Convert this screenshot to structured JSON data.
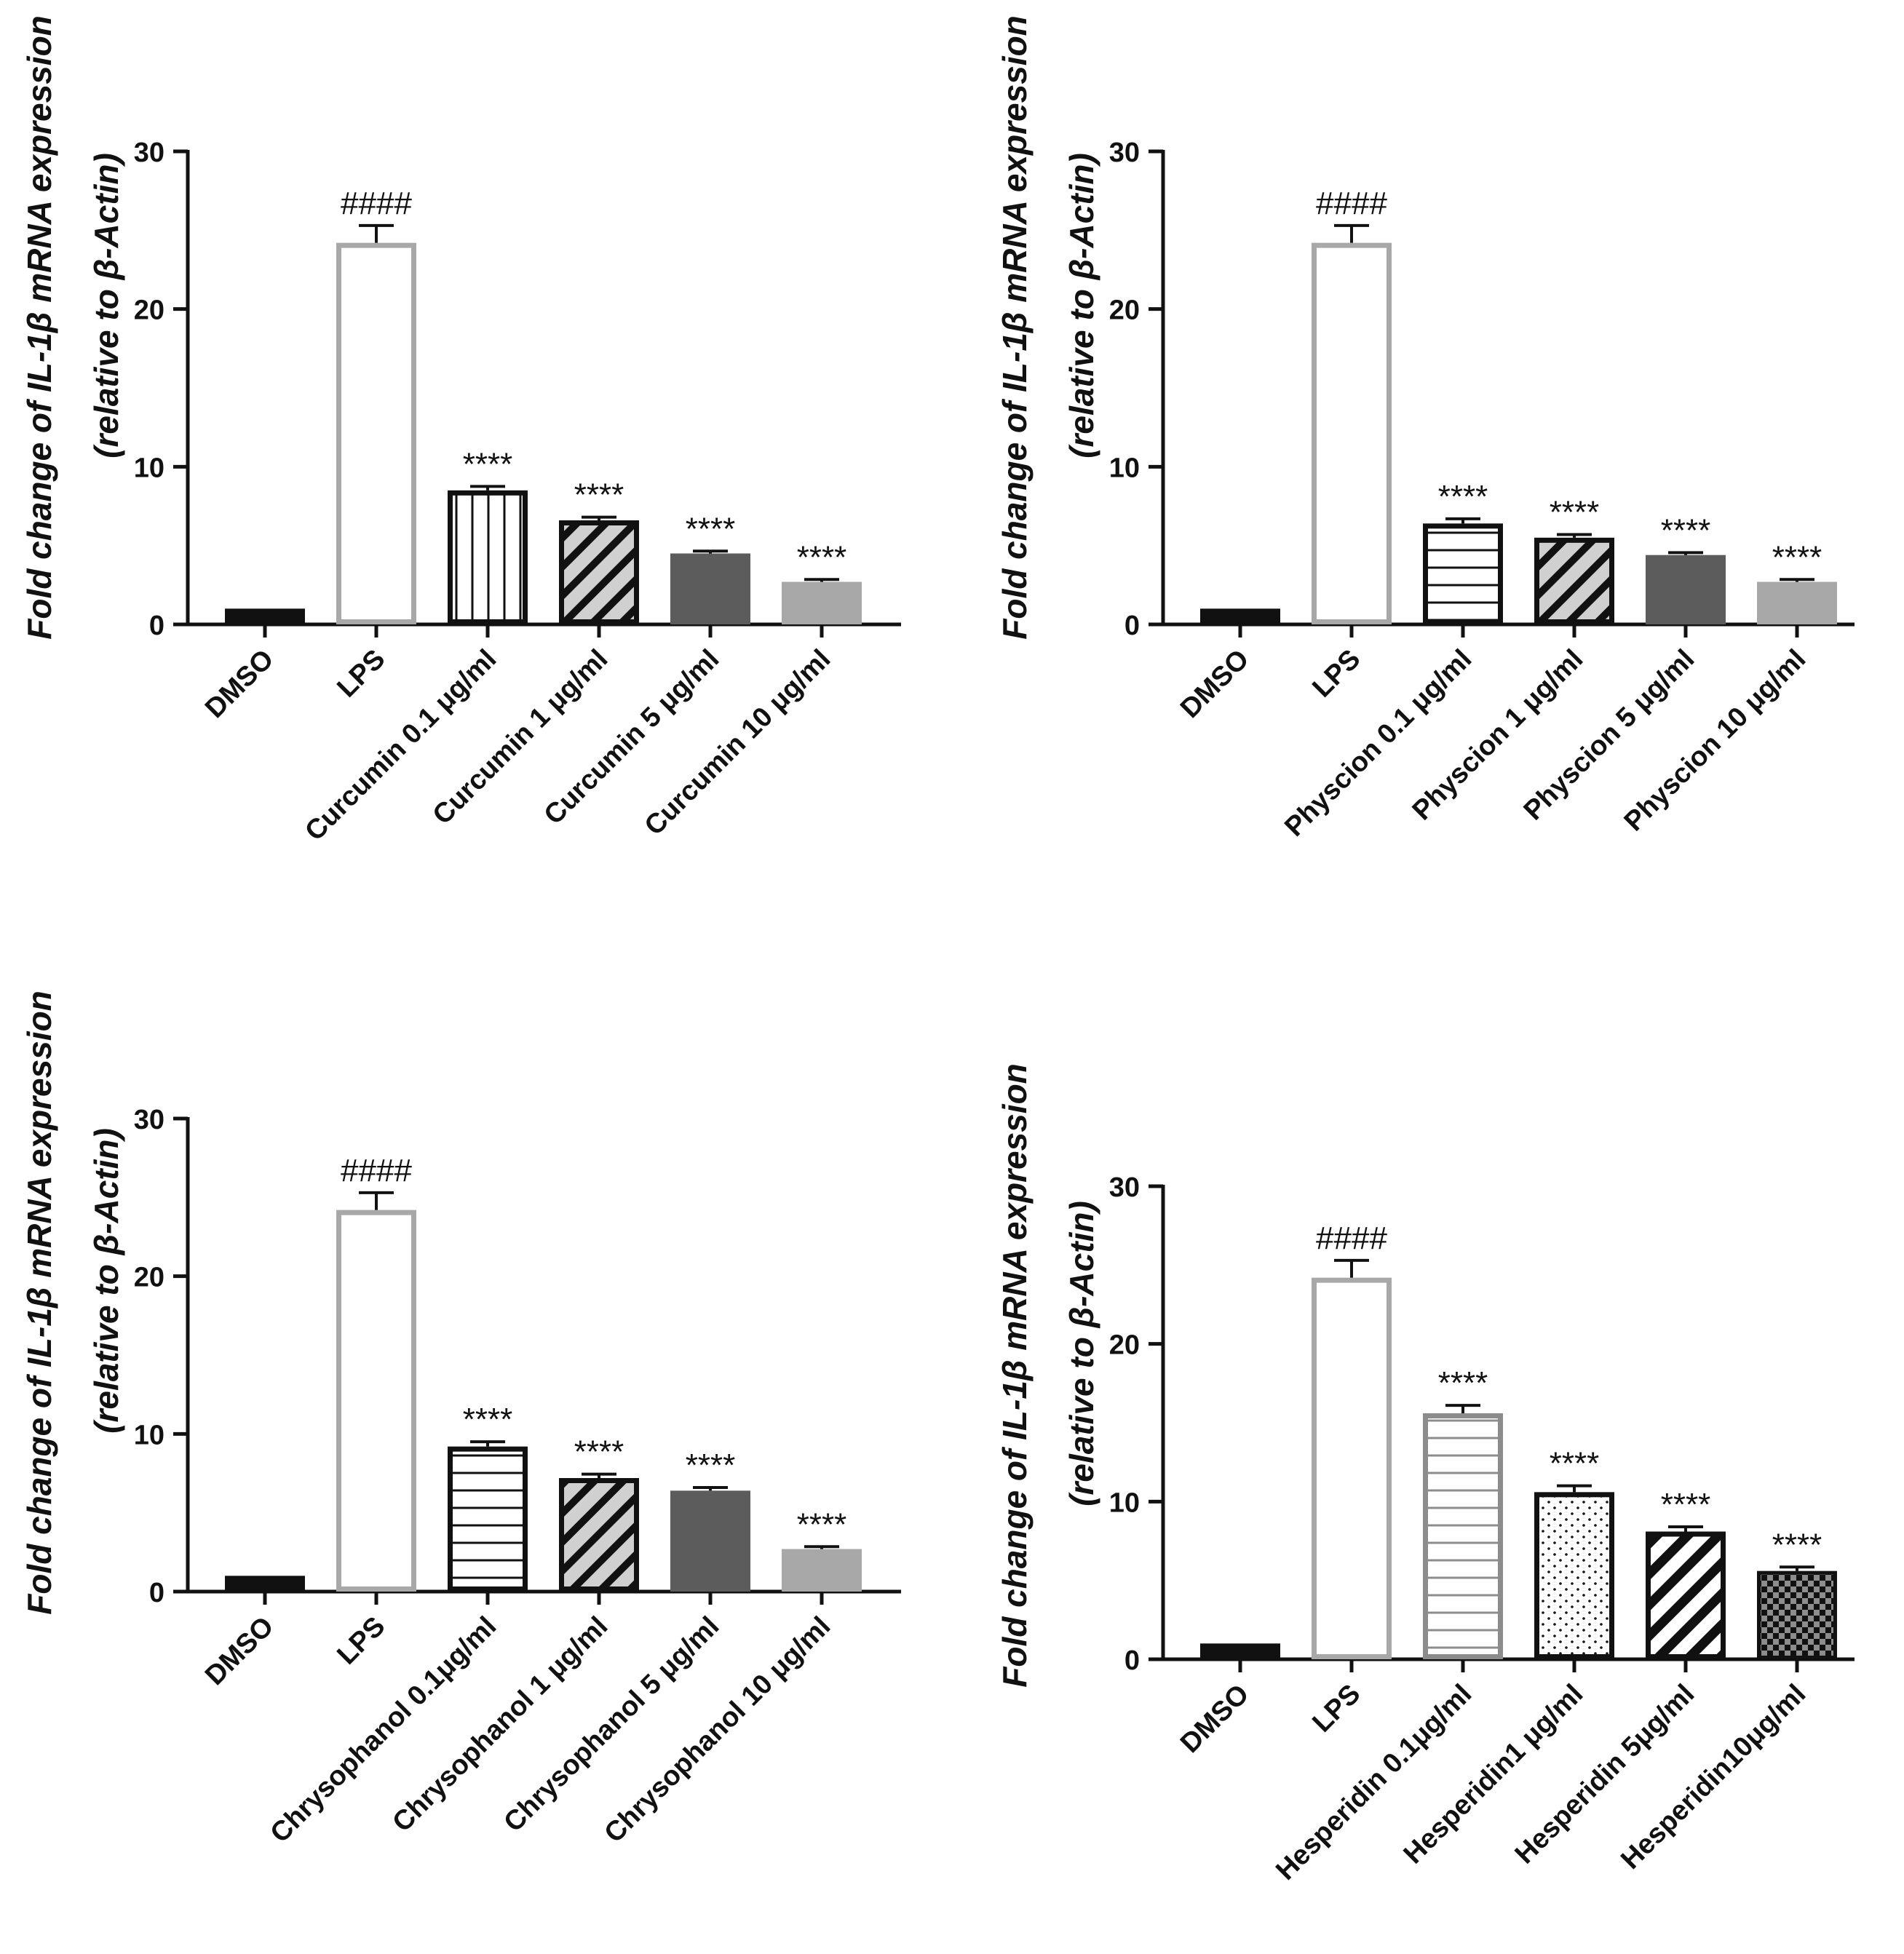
{
  "colors": {
    "black": "#111111",
    "dark_gray": "#5c5c5c",
    "mid_gray": "#8c8c8c",
    "light_gray": "#a8a8a8",
    "hatch_fill": "#d0d0d0",
    "white": "#ffffff"
  },
  "chart_data": [
    {
      "type": "bar",
      "ylabel_line1": "Fold change of IL-1β mRNA expression",
      "ylabel_line2": "(relative to β-Actin)",
      "ylim": [
        0,
        30
      ],
      "yticks": [
        "0",
        "10",
        "20",
        "30"
      ],
      "categories": [
        "DMSO",
        "LPS",
        "Curcumin 0.1 μg/ml",
        "Curcumin 1 μg/ml",
        "Curcumin 5 μg/ml",
        "Curcumin 10 μg/ml"
      ],
      "values": [
        1.0,
        24.2,
        8.5,
        6.6,
        4.5,
        2.7
      ],
      "errors": [
        0.1,
        1.1,
        0.25,
        0.2,
        0.15,
        0.15
      ],
      "annotations": [
        "",
        "####",
        "****",
        "****",
        "****",
        "****"
      ],
      "styles": [
        "solid-black",
        "outline-gray",
        "vlines",
        "hatch-gray",
        "solid-dark",
        "solid-light"
      ]
    },
    {
      "type": "bar",
      "ylabel_line1": "Fold change of IL-1β mRNA expression",
      "ylabel_line2": "(relative to β-Actin)",
      "ylim": [
        0,
        30
      ],
      "yticks": [
        "0",
        "10",
        "20",
        "30"
      ],
      "categories": [
        "DMSO",
        "LPS",
        "Physcion 0.1 μg/ml",
        "Physcion 1 μg/ml",
        "Physcion 5 μg/ml",
        "Physcion 10 μg/ml"
      ],
      "values": [
        1.0,
        24.2,
        6.4,
        5.5,
        4.4,
        2.7
      ],
      "errors": [
        0.1,
        1.1,
        0.3,
        0.2,
        0.15,
        0.15
      ],
      "annotations": [
        "",
        "####",
        "****",
        "****",
        "****",
        "****"
      ],
      "styles": [
        "solid-black",
        "outline-gray",
        "hlines",
        "hatch-gray",
        "solid-dark",
        "solid-light"
      ]
    },
    {
      "type": "bar",
      "ylabel_line1": "Fold change of IL-1β mRNA expression",
      "ylabel_line2": "(relative to β-Actin)",
      "ylim": [
        0,
        30
      ],
      "yticks": [
        "0",
        "10",
        "20",
        "30"
      ],
      "categories": [
        "DMSO",
        "LPS",
        "Chrysophanol  0.1μg/ml",
        "Chrysophanol 1 μg/ml",
        "Chrysophanol 5 μg/ml",
        "Chrysophanol 10 μg/ml"
      ],
      "values": [
        1.0,
        24.2,
        9.2,
        7.2,
        6.4,
        2.7
      ],
      "errors": [
        0.1,
        1.1,
        0.3,
        0.25,
        0.2,
        0.15
      ],
      "annotations": [
        "",
        "####",
        "****",
        "****",
        "****",
        "****"
      ],
      "styles": [
        "solid-black",
        "outline-gray",
        "hlines",
        "hatch-gray",
        "solid-dark",
        "solid-light"
      ]
    },
    {
      "type": "bar",
      "ylabel_line1": "Fold change of IL-1β mRNA expression",
      "ylabel_line2": "(relative to β-Actin)",
      "ylim": [
        0,
        30
      ],
      "yticks": [
        "0",
        "10",
        "20",
        "30"
      ],
      "categories": [
        "DMSO",
        "LPS",
        "Hesperidin 0.1μg/ml",
        "Hesperidin1 μg/ml",
        "Hesperidin 5μg/ml",
        "Hesperidin10μg/ml"
      ],
      "values": [
        1.0,
        24.2,
        15.6,
        10.6,
        8.1,
        5.6
      ],
      "errors": [
        0.1,
        1.1,
        0.5,
        0.4,
        0.3,
        0.25
      ],
      "annotations": [
        "",
        "####",
        "****",
        "****",
        "****",
        "****"
      ],
      "styles": [
        "solid-black",
        "outline-gray",
        "gray-hlines",
        "dots",
        "hatch-white",
        "checker"
      ]
    }
  ]
}
